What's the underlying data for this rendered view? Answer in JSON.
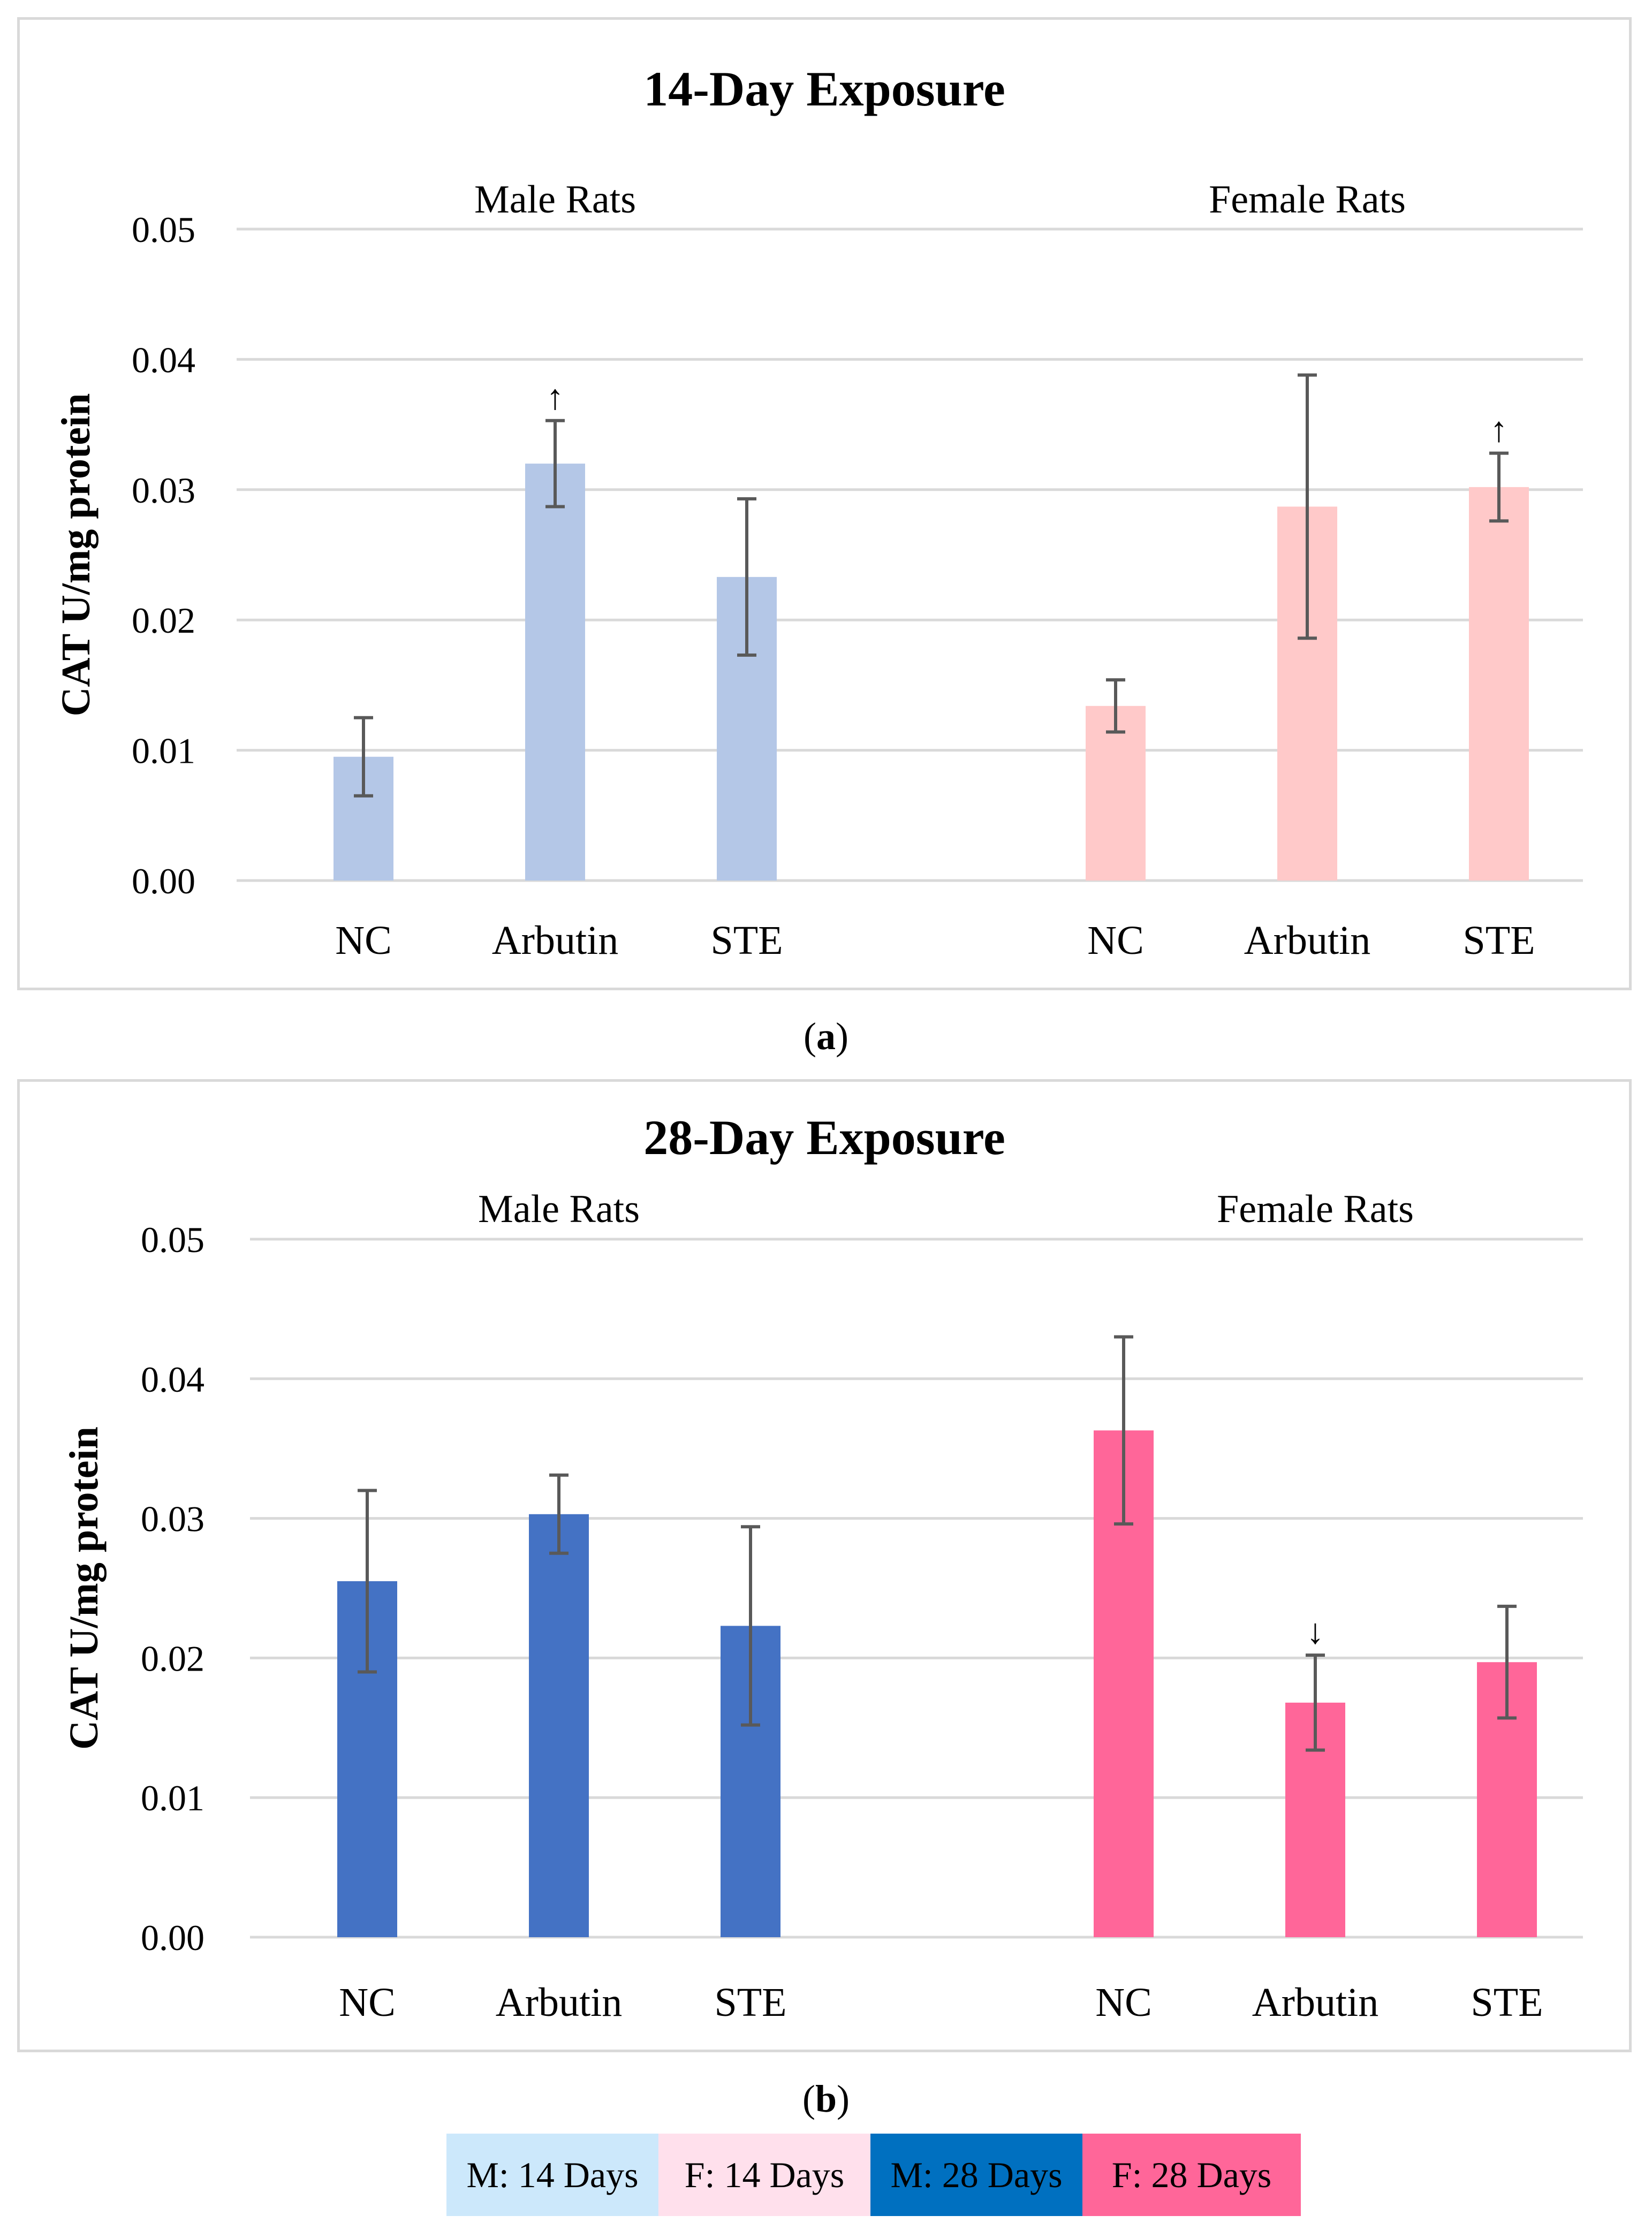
{
  "chart_data": [
    {
      "type": "bar",
      "title": "14-Day Exposure",
      "ylabel": "CAT U/mg protein",
      "xlabel": "",
      "ylim": [
        0,
        0.05
      ],
      "yticks": [
        "0.00",
        "0.01",
        "0.02",
        "0.03",
        "0.04",
        "0.05"
      ],
      "grid": true,
      "caption_letter": "a",
      "groups": [
        {
          "name": "Male Rats",
          "color": "#b4c7e7",
          "categories": [
            "NC",
            "Arbutin",
            "STE"
          ],
          "values": [
            0.0095,
            0.032,
            0.0233
          ],
          "errors": [
            0.003,
            0.0033,
            0.006
          ],
          "markers": [
            "",
            "↑",
            ""
          ]
        },
        {
          "name": "Female Rats",
          "color": "#ffc9c9",
          "categories": [
            "NC",
            "Arbutin",
            "STE"
          ],
          "values": [
            0.0134,
            0.0287,
            0.0302
          ],
          "errors": [
            0.002,
            0.0101,
            0.0026
          ],
          "markers": [
            "",
            "",
            "↑"
          ]
        }
      ]
    },
    {
      "type": "bar",
      "title": "28-Day Exposure",
      "ylabel": "CAT U/mg protein",
      "xlabel": "",
      "ylim": [
        0,
        0.05
      ],
      "yticks": [
        "0.00",
        "0.01",
        "0.02",
        "0.03",
        "0.04",
        "0.05"
      ],
      "grid": true,
      "caption_letter": "b",
      "groups": [
        {
          "name": "Male Rats",
          "color": "#4472c4",
          "categories": [
            "NC",
            "Arbutin",
            "STE"
          ],
          "values": [
            0.0255,
            0.0303,
            0.0223
          ],
          "errors": [
            0.0065,
            0.0028,
            0.0071
          ],
          "markers": [
            "",
            "",
            ""
          ]
        },
        {
          "name": "Female Rats",
          "color": "#ff6699",
          "categories": [
            "NC",
            "Arbutin",
            "STE"
          ],
          "values": [
            0.0363,
            0.0168,
            0.0197
          ],
          "errors": [
            0.0067,
            0.0034,
            0.004
          ],
          "markers": [
            "",
            "↓",
            ""
          ]
        }
      ]
    }
  ],
  "legend": [
    {
      "label": "M: 14 Days",
      "color": "#cce8fb"
    },
    {
      "label": "F: 14 Days",
      "color": "#ffe0ec"
    },
    {
      "label": "M: 28 Days",
      "color": "#0070c0"
    },
    {
      "label": "F: 28 Days",
      "color": "#ff6699"
    }
  ]
}
